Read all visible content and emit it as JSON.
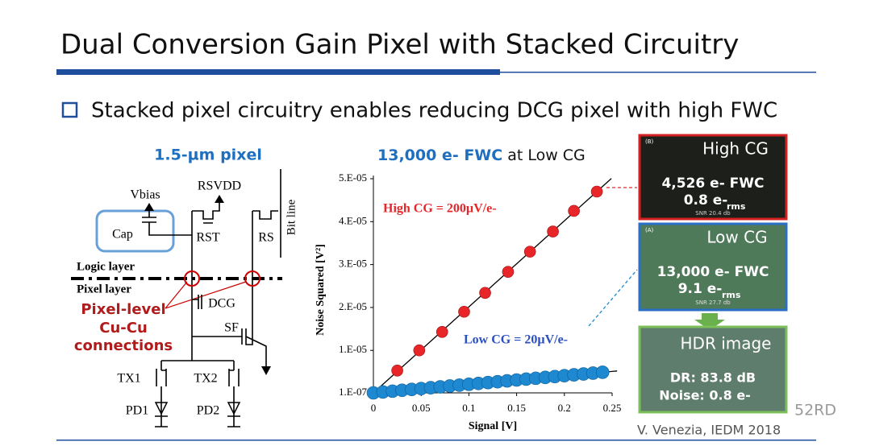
{
  "slide": {
    "title": "Dual Conversion Gain Pixel with Stacked Circuitry",
    "bullet": "Stacked pixel circuitry enables reducing DCG pixel with high FWC",
    "footer": "V. Venezia, IEDM 2018",
    "watermark": "52RD"
  },
  "circuit": {
    "title": "1.5-µm pixel",
    "vbias": "Vbias",
    "rsvdd": "RSVDD",
    "cap": "Cap",
    "rst": "RST",
    "rs": "RS",
    "bitline": "Bit line",
    "logic_layer": "Logic layer",
    "pixel_layer": "Pixel layer",
    "dcg": "DCG",
    "sf": "SF",
    "connections": [
      "Pixel-level",
      "Cu-Cu",
      "connections"
    ],
    "tx1": "TX1",
    "tx2": "TX2",
    "pd1": "PD1",
    "pd2": "PD2"
  },
  "images": [
    {
      "tag": "(B)",
      "title": "High CG",
      "line1": "4,526 e- FWC",
      "line2": "0.8 e-",
      "sub": "rms",
      "snr": "SNR 20.4 db"
    },
    {
      "tag": "(A)",
      "title": "Low CG",
      "line1": "13,000 e- FWC",
      "line2": "9.1 e-",
      "sub": "rms",
      "snr": "SNR 27.7 db"
    },
    {
      "title": "HDR image",
      "line1": "DR: 83.8 dB",
      "line2": "Noise: 0.8 e-"
    }
  ],
  "chart_data": {
    "type": "scatter",
    "title": "13,000 e- FWC",
    "title_suffix": "at Low CG",
    "x_label": "Signal [V]",
    "y_label": "Noise Squared [V²]",
    "annotations": [
      "High CG = 200µV/e-",
      "Low CG = 20µV/e-"
    ],
    "xlim": [
      0,
      0.25
    ],
    "xticks": [
      0,
      0.05,
      0.1,
      0.15,
      0.2,
      0.25
    ],
    "ylim": [
      1e-07,
      5e-05
    ],
    "yticks": [
      {
        "value": 1e-07,
        "label": "1.E-07"
      },
      {
        "value": 1e-05,
        "label": "1.E-05"
      },
      {
        "value": 2e-05,
        "label": "2.E-05"
      },
      {
        "value": 3e-05,
        "label": "3.E-05"
      },
      {
        "value": 4e-05,
        "label": "4.E-05"
      },
      {
        "value": 5e-05,
        "label": "5.E-05"
      }
    ],
    "series": [
      {
        "name": "High CG",
        "color": "#e8262a",
        "x": [
          0,
          0.025,
          0.048,
          0.072,
          0.095,
          0.117,
          0.141,
          0.164,
          0.188,
          0.21,
          0.234
        ],
        "values": [
          1e-07,
          5.3e-06,
          1e-05,
          1.43e-05,
          1.9e-05,
          2.34e-05,
          2.83e-05,
          3.3e-05,
          3.77e-05,
          4.25e-05,
          4.7e-05
        ]
      },
      {
        "name": "Low CG",
        "color": "#1e88d0",
        "x": [
          0,
          0.01,
          0.02,
          0.03,
          0.04,
          0.05,
          0.06,
          0.07,
          0.08,
          0.09,
          0.1,
          0.11,
          0.12,
          0.13,
          0.14,
          0.15,
          0.16,
          0.17,
          0.18,
          0.19,
          0.2,
          0.21,
          0.22,
          0.23,
          0.24
        ],
        "values": [
          1e-07,
          3e-07,
          5e-07,
          7e-07,
          9e-07,
          1.1e-06,
          1.3e-06,
          1.5e-06,
          1.7e-06,
          1.9e-06,
          2.1e-06,
          2.3e-06,
          2.5e-06,
          2.7e-06,
          2.9e-06,
          3.1e-06,
          3.3e-06,
          3.5e-06,
          3.7e-06,
          3.9e-06,
          4.1e-06,
          4.3e-06,
          4.5e-06,
          4.7e-06,
          4.9e-06
        ]
      }
    ]
  }
}
